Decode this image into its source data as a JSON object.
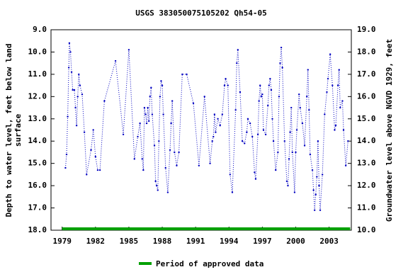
{
  "chart_data": {
    "type": "line",
    "title": "USGS 383050075105202 Qh54-05",
    "ylabel": [
      "Depth to water level, feet below land",
      "surface"
    ],
    "y2label": "Groundwater level above NGVD 1929, feet",
    "xlim": [
      1978,
      2005
    ],
    "xticks": [
      1979,
      1982,
      1985,
      1988,
      1991,
      1994,
      1997,
      2000,
      2003
    ],
    "ylim": [
      9,
      18
    ],
    "y_inverted": true,
    "yticks": [
      {
        "value": 9,
        "label": "9.0"
      },
      {
        "value": 10,
        "label": "10.0"
      },
      {
        "value": 11,
        "label": "11.0"
      },
      {
        "value": 12,
        "label": "12.0"
      },
      {
        "value": 13,
        "label": "13.0"
      },
      {
        "value": 14,
        "label": "14.0"
      },
      {
        "value": 15,
        "label": "15.0"
      },
      {
        "value": 16,
        "label": "16.0"
      },
      {
        "value": 17,
        "label": "17.0"
      },
      {
        "value": 18,
        "label": "18.0"
      }
    ],
    "y2lim": [
      19,
      10
    ],
    "y2ticks": [
      {
        "value": 19,
        "label": "19.0"
      },
      {
        "value": 18,
        "label": "18.0"
      },
      {
        "value": 17,
        "label": "17.0"
      },
      {
        "value": 16,
        "label": "16.0"
      },
      {
        "value": 15,
        "label": "15.0"
      },
      {
        "value": 14,
        "label": "14.0"
      },
      {
        "value": 13,
        "label": "13.0"
      },
      {
        "value": 12,
        "label": "12.0"
      },
      {
        "value": 11,
        "label": "11.0"
      },
      {
        "value": 10,
        "label": "10.0"
      }
    ],
    "series": [
      {
        "color": "#0000c0",
        "x": [
          1979.3,
          1979.4,
          1979.5,
          1979.6,
          1979.65,
          1979.75,
          1979.85,
          1979.95,
          1980.1,
          1980.2,
          1980.3,
          1980.4,
          1980.5,
          1980.6,
          1980.8,
          1981.0,
          1981.2,
          1981.6,
          1981.8,
          1982.0,
          1982.2,
          1982.4,
          1982.8,
          1983.8,
          1984.5,
          1985.0,
          1985.5,
          1985.8,
          1986.0,
          1986.2,
          1986.3,
          1986.4,
          1986.5,
          1986.6,
          1986.7,
          1986.8,
          1986.9,
          1987.0,
          1987.1,
          1987.3,
          1987.4,
          1987.5,
          1987.6,
          1987.7,
          1987.8,
          1987.9,
          1988.0,
          1988.1,
          1988.3,
          1988.5,
          1988.7,
          1988.8,
          1988.9,
          1989.1,
          1989.3,
          1989.5,
          1989.8,
          1990.2,
          1990.8,
          1991.3,
          1991.8,
          1992.3,
          1992.5,
          1992.6,
          1992.7,
          1992.8,
          1993.0,
          1993.2,
          1993.4,
          1993.6,
          1993.7,
          1993.9,
          1994.1,
          1994.3,
          1994.6,
          1994.7,
          1994.8,
          1995.0,
          1995.2,
          1995.4,
          1995.6,
          1995.7,
          1995.9,
          1996.1,
          1996.3,
          1996.4,
          1996.6,
          1996.7,
          1996.8,
          1996.9,
          1997.0,
          1997.1,
          1997.3,
          1997.5,
          1997.6,
          1997.7,
          1997.8,
          1997.9,
          1998.0,
          1998.2,
          1998.4,
          1998.5,
          1998.6,
          1998.7,
          1998.8,
          1999.0,
          1999.2,
          1999.3,
          1999.4,
          1999.5,
          1999.6,
          1999.7,
          1999.9,
          2000.0,
          2000.1,
          2000.3,
          2000.4,
          2000.6,
          2000.8,
          2001.0,
          2001.1,
          2001.2,
          2001.3,
          2001.5,
          2001.6,
          2001.7,
          2001.8,
          2001.9,
          2002.0,
          2002.1,
          2002.2,
          2002.4,
          2002.6,
          2002.8,
          2002.9,
          2003.1,
          2003.3,
          2003.5,
          2003.6,
          2003.8,
          2003.9,
          2004.0,
          2004.2,
          2004.3,
          2004.5,
          2004.7
        ],
        "values": [
          15.2,
          14.6,
          12.9,
          10.7,
          9.6,
          10.0,
          10.9,
          11.7,
          11.7,
          12.5,
          13.3,
          12.0,
          11.0,
          11.5,
          11.9,
          13.6,
          15.5,
          14.4,
          13.5,
          14.7,
          15.3,
          15.3,
          12.2,
          10.4,
          13.7,
          9.9,
          14.8,
          13.8,
          13.2,
          14.8,
          15.3,
          12.5,
          12.8,
          13.2,
          12.5,
          13.1,
          12.0,
          11.6,
          12.8,
          14.2,
          15.8,
          16.0,
          16.2,
          14.0,
          12.0,
          11.3,
          11.5,
          12.8,
          15.2,
          16.3,
          14.4,
          13.2,
          12.2,
          14.5,
          15.1,
          14.5,
          11.0,
          11.0,
          12.3,
          15.1,
          12.0,
          15.0,
          14.0,
          13.8,
          12.8,
          13.6,
          13.0,
          13.3,
          12.8,
          11.5,
          11.2,
          11.5,
          15.5,
          16.3,
          12.6,
          10.5,
          9.9,
          11.8,
          14.0,
          14.1,
          13.6,
          13.0,
          13.2,
          13.8,
          15.4,
          15.7,
          13.7,
          12.2,
          11.5,
          12.0,
          11.9,
          13.5,
          13.7,
          12.4,
          11.5,
          11.2,
          11.7,
          13.0,
          14.0,
          15.3,
          14.5,
          12.0,
          10.5,
          9.8,
          10.7,
          14.0,
          15.8,
          16.0,
          14.8,
          13.6,
          12.5,
          14.5,
          16.3,
          14.5,
          13.5,
          11.9,
          12.5,
          13.2,
          14.2,
          12.0,
          10.8,
          12.6,
          14.6,
          15.3,
          16.2,
          17.1,
          16.4,
          15.6,
          14.0,
          16.0,
          17.1,
          15.5,
          12.8,
          11.8,
          11.2,
          10.1,
          11.5,
          13.5,
          13.3,
          11.5,
          10.8,
          12.5,
          12.2,
          13.5,
          15.1,
          14.0
        ]
      }
    ],
    "approved_period": {
      "name": "Period of approved data",
      "color": "#00a000",
      "x": [
        1979,
        2004.9
      ]
    }
  }
}
